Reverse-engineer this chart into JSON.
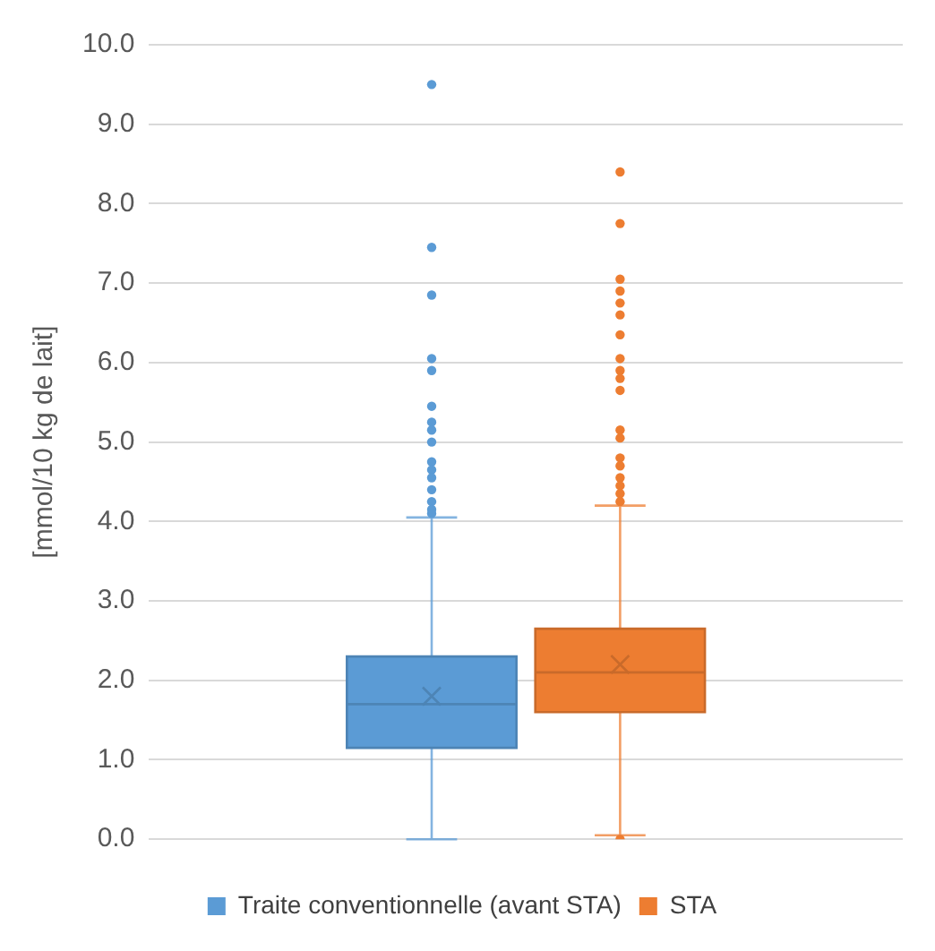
{
  "chart_data": {
    "type": "box",
    "ylabel": "[mmol/10 kg de lait]",
    "categories": [
      null
    ],
    "series": [
      {
        "name": "Traite conventionnelle (avant STA)",
        "color": "#5b9bd5",
        "boxes": [
          {
            "low": 0.0,
            "q1": 1.15,
            "median": 1.7,
            "q3": 2.3,
            "high": 4.05,
            "mean": 1.8,
            "outliers": [
              9.5,
              7.45,
              6.85,
              6.05,
              5.9,
              5.45,
              5.25,
              5.15,
              5.0,
              4.75,
              4.65,
              4.55,
              4.4,
              4.25,
              4.15,
              4.1
            ]
          }
        ]
      },
      {
        "name": "STA",
        "color": "#ed7d31",
        "boxes": [
          {
            "low": 0.05,
            "q1": 1.6,
            "median": 2.1,
            "q3": 2.65,
            "high": 4.2,
            "mean": 2.2,
            "outliers": [
              8.4,
              7.75,
              7.05,
              6.9,
              6.75,
              6.6,
              6.35,
              6.05,
              5.9,
              5.8,
              5.65,
              5.15,
              5.05,
              4.8,
              4.7,
              4.55,
              4.45,
              4.35,
              4.25,
              0.0
            ]
          }
        ]
      }
    ],
    "ylim": [
      0,
      10
    ],
    "yticks": [
      {
        "value": 0,
        "label": "0.0"
      },
      {
        "value": 1,
        "label": "1.0"
      },
      {
        "value": 2,
        "label": "2.0"
      },
      {
        "value": 3,
        "label": "3.0"
      },
      {
        "value": 4,
        "label": "4.0"
      },
      {
        "value": 5,
        "label": "5.0"
      },
      {
        "value": 6,
        "label": "6.0"
      },
      {
        "value": 7,
        "label": "7.0"
      },
      {
        "value": 8,
        "label": "8.0"
      },
      {
        "value": 9,
        "label": "9.0"
      },
      {
        "value": 10,
        "label": "10.0"
      }
    ],
    "grid": "y",
    "legend": "bottom",
    "marker": "circle"
  }
}
